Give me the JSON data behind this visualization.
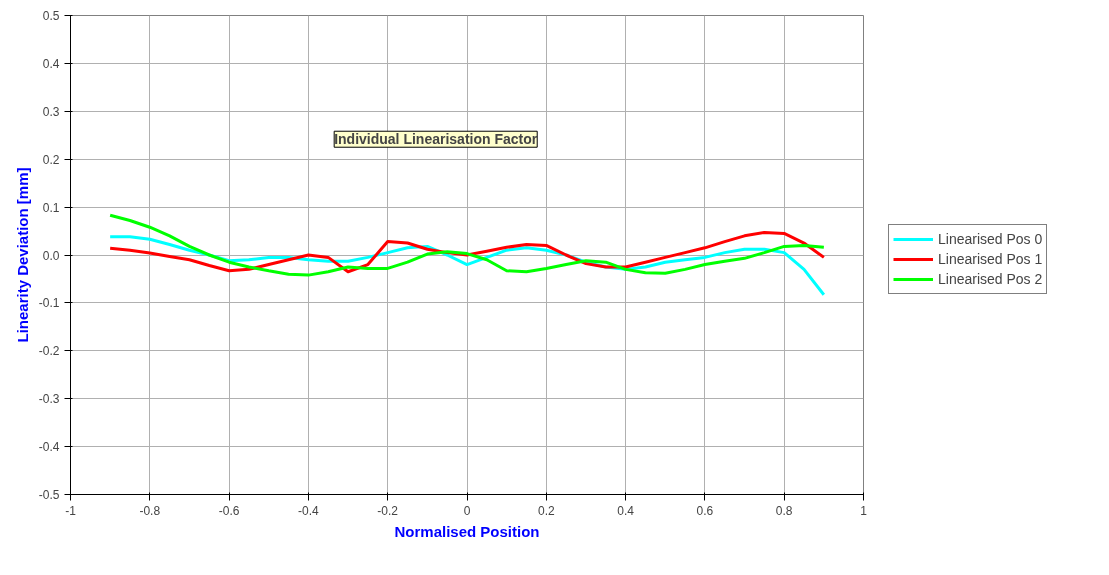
{
  "chart_data": {
    "type": "line",
    "xlabel": "Normalised Position",
    "ylabel": "Linearity Deviation [mm]",
    "annotations": [
      "Individual Linearisation Factor"
    ],
    "x": [
      -0.9,
      -0.85,
      -0.8,
      -0.75,
      -0.7,
      -0.65,
      -0.6,
      -0.55,
      -0.5,
      -0.45,
      -0.4,
      -0.35,
      -0.3,
      -0.25,
      -0.2,
      -0.15,
      -0.1,
      -0.05,
      0,
      0.05,
      0.1,
      0.15,
      0.2,
      0.25,
      0.3,
      0.35,
      0.4,
      0.45,
      0.5,
      0.55,
      0.6,
      0.65,
      0.7,
      0.75,
      0.8,
      0.85,
      0.9
    ],
    "series": [
      {
        "name": "Linearised Pos 0",
        "color": "#00ffff",
        "values": [
          0.038,
          0.038,
          0.033,
          0.022,
          0.01,
          0.0,
          -0.012,
          -0.01,
          -0.005,
          -0.005,
          -0.01,
          -0.013,
          -0.013,
          -0.005,
          0.005,
          0.015,
          0.018,
          0.0,
          -0.02,
          -0.005,
          0.01,
          0.015,
          0.01,
          0.0,
          -0.015,
          -0.025,
          -0.03,
          -0.025,
          -0.015,
          -0.01,
          -0.005,
          0.005,
          0.012,
          0.012,
          0.005,
          -0.03,
          -0.083
        ]
      },
      {
        "name": "Linearised Pos 1",
        "color": "#ff0000",
        "values": [
          0.014,
          0.01,
          0.004,
          -0.003,
          -0.01,
          -0.022,
          -0.033,
          -0.03,
          -0.02,
          -0.01,
          0.0,
          -0.005,
          -0.035,
          -0.02,
          0.028,
          0.025,
          0.012,
          0.005,
          0.0,
          0.008,
          0.016,
          0.022,
          0.02,
          0.0,
          -0.018,
          -0.025,
          -0.025,
          -0.015,
          -0.005,
          0.005,
          0.015,
          0.028,
          0.04,
          0.047,
          0.045,
          0.025,
          -0.005
        ]
      },
      {
        "name": "Linearised Pos 2",
        "color": "#00ff00",
        "values": [
          0.083,
          0.072,
          0.058,
          0.04,
          0.018,
          0.0,
          -0.015,
          -0.025,
          -0.033,
          -0.04,
          -0.042,
          -0.035,
          -0.025,
          -0.028,
          -0.028,
          -0.015,
          0.002,
          0.007,
          0.003,
          -0.01,
          -0.033,
          -0.035,
          -0.028,
          -0.02,
          -0.012,
          -0.015,
          -0.03,
          -0.037,
          -0.038,
          -0.03,
          -0.02,
          -0.013,
          -0.007,
          0.005,
          0.018,
          0.02,
          0.016
        ]
      }
    ],
    "xlim": [
      -1,
      1
    ],
    "xticks": [
      -1,
      -0.8,
      -0.6,
      -0.4,
      -0.2,
      0,
      0.2,
      0.4,
      0.6,
      0.8,
      1
    ],
    "ylim": [
      -0.5,
      0.5
    ],
    "yticks": [
      {
        "value": -0.5,
        "label": "-0.5"
      },
      {
        "value": -0.4,
        "label": "-0.4"
      },
      {
        "value": -0.3,
        "label": "-0.3"
      },
      {
        "value": -0.2,
        "label": "-0.2"
      },
      {
        "value": -0.1,
        "label": "-0.1"
      },
      {
        "value": 0,
        "label": "0.0"
      },
      {
        "value": 0.1,
        "label": "0.1"
      },
      {
        "value": 0.2,
        "label": "0.2"
      },
      {
        "value": 0.3,
        "label": "0.3"
      },
      {
        "value": 0.4,
        "label": "0.4"
      },
      {
        "value": 0.5,
        "label": "0.5"
      }
    ],
    "grid": true,
    "legend": "right",
    "marker": "none",
    "line_style": "solid"
  }
}
